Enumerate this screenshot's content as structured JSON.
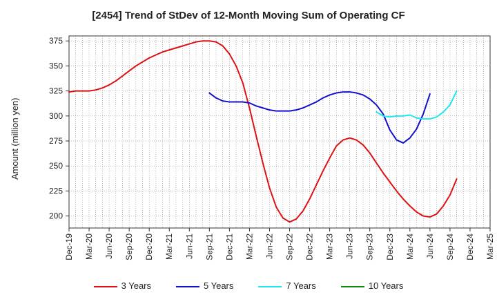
{
  "chart_data": {
    "type": "line",
    "title": "[2454]  Trend of StDev of 12-Month Moving Sum of Operating CF",
    "ylabel": "Amount (million yen)",
    "xlabel": "",
    "ylim": [
      188,
      380
    ],
    "yticks": [
      200,
      225,
      250,
      275,
      300,
      325,
      350,
      375
    ],
    "x_tick_labels": [
      "Dec-19",
      "Mar-20",
      "Jun-20",
      "Sep-20",
      "Dec-20",
      "Mar-21",
      "Jun-21",
      "Sep-21",
      "Dec-21",
      "Mar-22",
      "Jun-22",
      "Sep-22",
      "Dec-22",
      "Mar-23",
      "Jun-23",
      "Sep-23",
      "Dec-23",
      "Mar-24",
      "Jun-24",
      "Sep-24",
      "Dec-24",
      "Mar-25"
    ],
    "grid": true,
    "legend_position": "bottom",
    "series": [
      {
        "name": "3 Years",
        "color": "#dd1111",
        "start_index": 0,
        "values": [
          324,
          325,
          325,
          325,
          326,
          328,
          331,
          335,
          340,
          345,
          350,
          354,
          358,
          361,
          364,
          366,
          368,
          370,
          372,
          374,
          375,
          375,
          374,
          370,
          362,
          350,
          333,
          308,
          280,
          253,
          228,
          209,
          198,
          194,
          197,
          205,
          217,
          231,
          245,
          258,
          270,
          276,
          278,
          276,
          271,
          263,
          253,
          243,
          234,
          225,
          217,
          210,
          204,
          200,
          199,
          202,
          210,
          221,
          237
        ]
      },
      {
        "name": "5 Years",
        "color": "#1111cc",
        "start_index": 21,
        "values": [
          323,
          318,
          315,
          314,
          314,
          314,
          313,
          310,
          308,
          306,
          305,
          305,
          305,
          306,
          308,
          311,
          314,
          318,
          321,
          323,
          324,
          324,
          323,
          321,
          317,
          311,
          302,
          286,
          276,
          273,
          278,
          287,
          302,
          322
        ]
      },
      {
        "name": "7 Years",
        "color": "#22e5f2",
        "start_index": 46,
        "values": [
          304,
          300,
          299,
          300,
          300,
          301,
          298,
          297,
          297,
          299,
          304,
          311,
          325
        ]
      },
      {
        "name": "10 Years",
        "color": "#118811",
        "start_index": 0,
        "values": []
      }
    ]
  }
}
